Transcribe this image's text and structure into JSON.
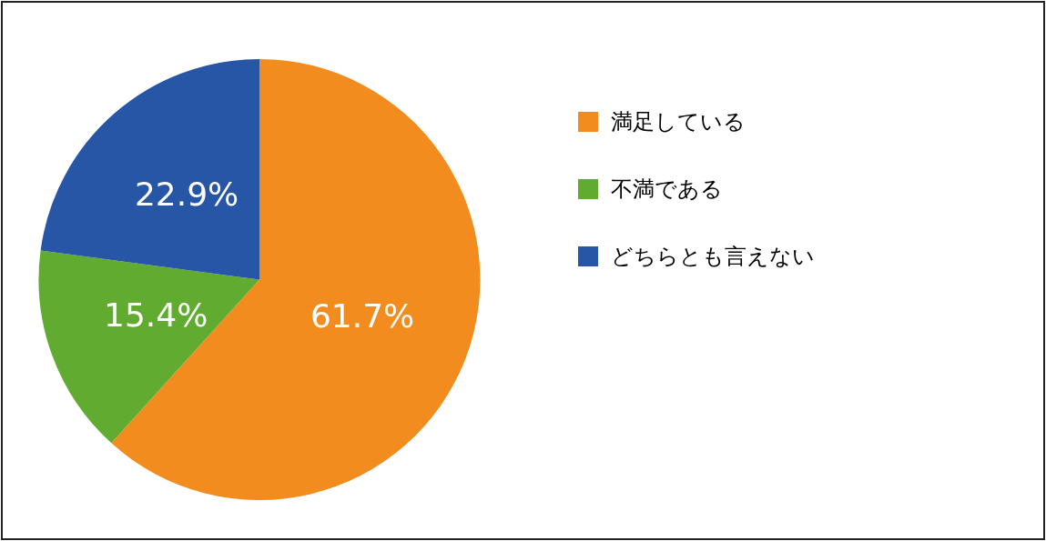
{
  "chart_data": {
    "type": "pie",
    "categories": [
      "満足している",
      "不満である",
      "どちらとも言えない"
    ],
    "values": [
      61.7,
      15.4,
      22.9
    ],
    "colors": [
      "#f28c1e",
      "#62ab31",
      "#2656a5"
    ],
    "value_labels": [
      "61.7%",
      "15.4%",
      "22.9%"
    ],
    "legend": "right"
  }
}
